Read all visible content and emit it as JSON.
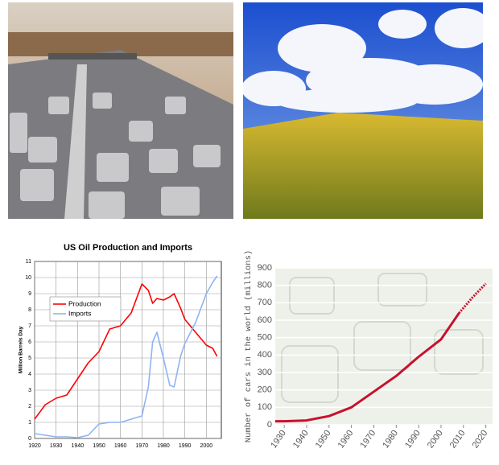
{
  "chart_data": [
    {
      "type": "line",
      "title": "US Oil Production and Imports",
      "y_label": "Million Barrels Day",
      "x": [
        1920,
        1925,
        1930,
        1935,
        1940,
        1945,
        1950,
        1955,
        1960,
        1965,
        1970,
        1973,
        1975,
        1977,
        1980,
        1983,
        1985,
        1988,
        1990,
        1995,
        2000,
        2003,
        2005
      ],
      "series": [
        {
          "name": "Production",
          "color": "#ff0000",
          "values": [
            1.2,
            2.1,
            2.5,
            2.7,
            3.7,
            4.7,
            5.4,
            6.8,
            7.0,
            7.8,
            9.6,
            9.2,
            8.4,
            8.7,
            8.6,
            8.8,
            9.0,
            8.1,
            7.4,
            6.6,
            5.8,
            5.6,
            5.1
          ]
        },
        {
          "name": "Imports",
          "color": "#8fb4f0",
          "values": [
            0.3,
            0.2,
            0.1,
            0.1,
            0.05,
            0.2,
            0.9,
            1.0,
            1.0,
            1.2,
            1.4,
            3.2,
            6.0,
            6.6,
            5.0,
            3.3,
            3.2,
            5.1,
            5.9,
            7.2,
            9.0,
            9.7,
            10.1
          ]
        }
      ],
      "xlim": [
        1920,
        2007
      ],
      "xticks": [
        1920,
        1930,
        1940,
        1950,
        1960,
        1970,
        1980,
        1990,
        2000
      ],
      "ylim": [
        0,
        11
      ],
      "yticks": [
        0,
        1,
        2,
        3,
        4,
        5,
        6,
        7,
        8,
        9,
        10,
        11
      ],
      "grid": "both",
      "legend": "upper left"
    },
    {
      "type": "line",
      "y_label": "Number of cars in the world (millions)",
      "series": [
        {
          "color": "#c8102e",
          "x": [
            1926,
            1930,
            1940,
            1950,
            1960,
            1970,
            1980,
            1990,
            2000,
            2008
          ],
          "values": [
            20,
            20,
            25,
            50,
            100,
            190,
            280,
            390,
            490,
            640
          ],
          "dashed": false
        },
        {
          "color": "#c8102e",
          "x": [
            2008,
            2014,
            2020
          ],
          "values": [
            640,
            730,
            810
          ],
          "dashed": true
        }
      ],
      "xlim": [
        1926,
        2023
      ],
      "xticks": [
        1930,
        1940,
        1950,
        1960,
        1970,
        1980,
        1990,
        2000,
        2010,
        2020
      ],
      "ylim": [
        0,
        900
      ],
      "yticks": [
        0,
        100,
        200,
        300,
        400,
        500,
        600,
        700,
        800,
        900
      ],
      "grid": "y"
    }
  ]
}
